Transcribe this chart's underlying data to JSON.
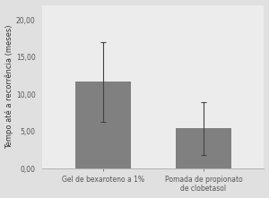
{
  "categories": [
    "Gel de bexaroteno a 1%",
    "Pomada de propionato\nde clobetasol"
  ],
  "values": [
    11.7,
    5.5
  ],
  "error_low": [
    5.4,
    3.7
  ],
  "error_high": [
    5.3,
    3.5
  ],
  "bar_color": "#808080",
  "bar_width": 0.55,
  "ylabel": "Tempo até a recorrência (meses)",
  "ylim": [
    0,
    22
  ],
  "yticks": [
    0.0,
    5.0,
    10.0,
    15.0,
    20.0
  ],
  "ytick_labels": [
    "0,00",
    "5,00",
    "10,00",
    "15,00",
    "20,00"
  ],
  "figure_bg_color": "#e0e0e0",
  "plot_bg_color": "#ececec",
  "tick_fontsize": 5.5,
  "ylabel_fontsize": 6,
  "xlabel_fontsize": 5.5,
  "errorbar_color": "#444444",
  "errorbar_linewidth": 0.8,
  "errorbar_capsize": 2.5,
  "errorbar_capthick": 0.8
}
